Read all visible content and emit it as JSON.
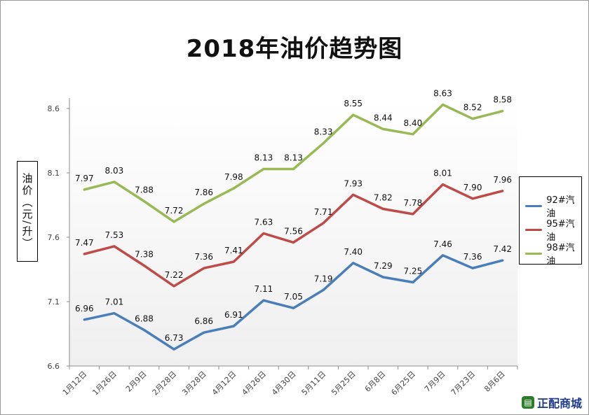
{
  "chart_data": {
    "type": "line",
    "title": "2018年油价趋势图",
    "ylabel": "油价（元/升）",
    "xlabel": "",
    "ylim": [
      6.6,
      8.6
    ],
    "yticks": [
      "6.6",
      "7.1",
      "7.6",
      "8.1",
      "8.6"
    ],
    "categories": [
      "1月12日",
      "1月26日",
      "2月9日",
      "2月28日",
      "3月28日",
      "4月12日",
      "4月26日",
      "4月30日",
      "5月11日",
      "5月25日",
      "6月8日",
      "6月25日",
      "7月9日",
      "7月23日",
      "8月6日"
    ],
    "series": [
      {
        "name": "92#汽油",
        "color": "#4a7ebb",
        "values": [
          6.96,
          7.01,
          6.88,
          6.73,
          6.86,
          6.91,
          7.11,
          7.05,
          7.19,
          7.4,
          7.29,
          7.25,
          7.46,
          7.36,
          7.42
        ]
      },
      {
        "name": "95#汽油",
        "color": "#be4b48",
        "values": [
          7.47,
          7.53,
          7.38,
          7.22,
          7.36,
          7.41,
          7.63,
          7.56,
          7.71,
          7.93,
          7.82,
          7.78,
          8.01,
          7.9,
          7.96
        ]
      },
      {
        "name": "98#汽油",
        "color": "#98b954",
        "values": [
          7.97,
          8.03,
          7.88,
          7.72,
          7.86,
          7.98,
          8.13,
          8.13,
          8.33,
          8.55,
          8.44,
          8.4,
          8.63,
          8.52,
          8.58
        ]
      }
    ],
    "legend_position": "right",
    "grid": false
  },
  "watermark": {
    "text": "正配商城",
    "icon": "shopping-cart-icon"
  }
}
